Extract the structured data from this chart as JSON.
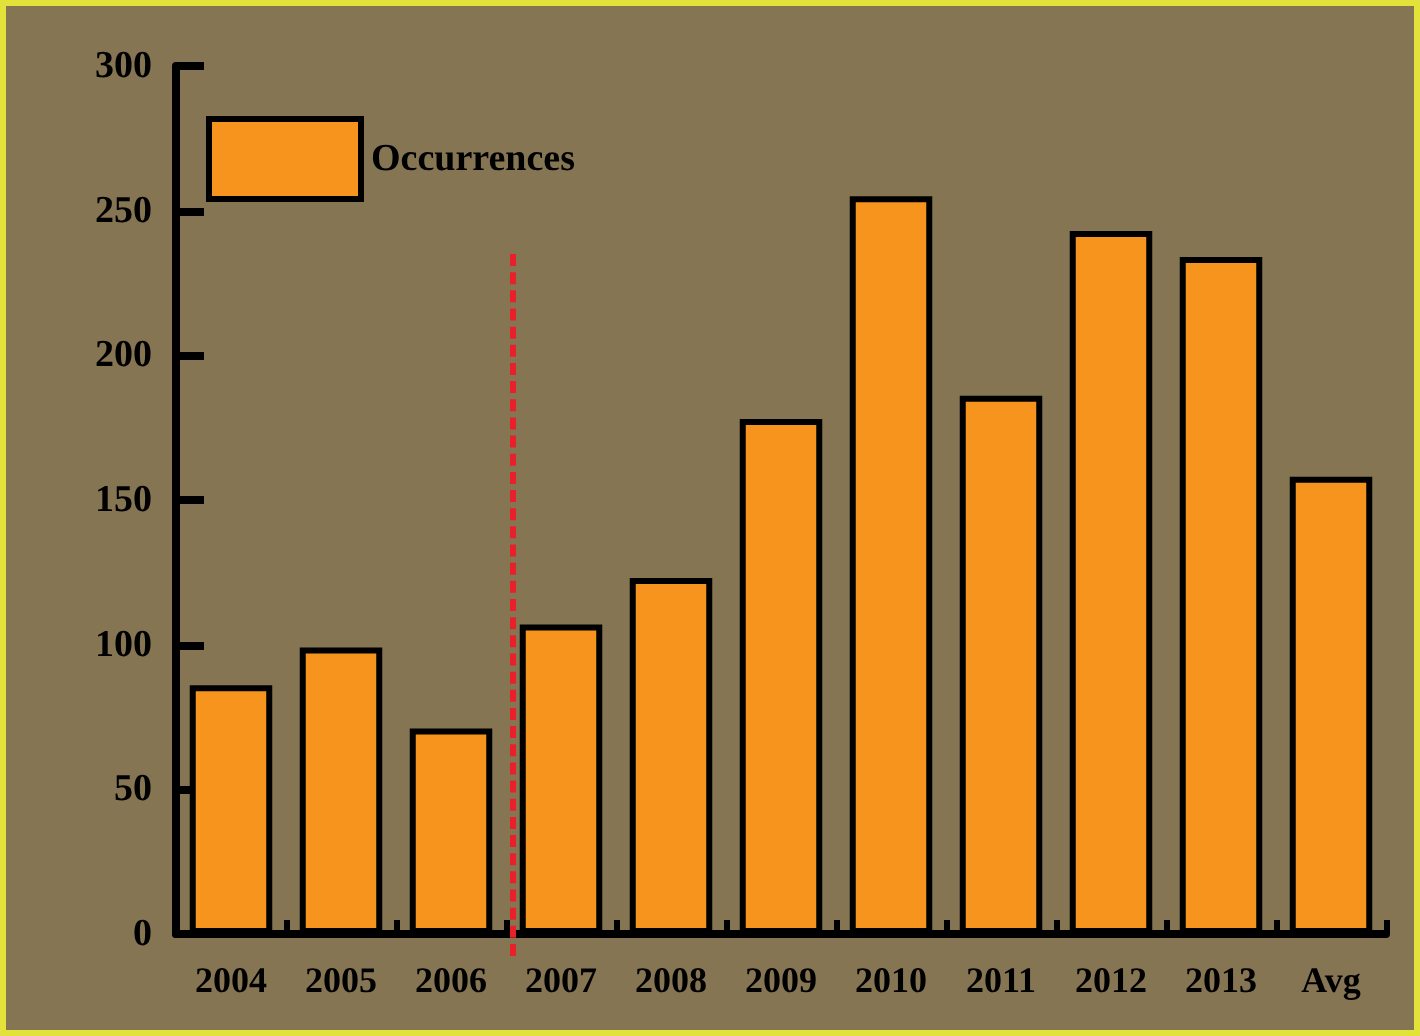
{
  "chart_data": {
    "type": "bar",
    "categories": [
      "2004",
      "2005",
      "2006",
      "2007",
      "2008",
      "2009",
      "2010",
      "2011",
      "2012",
      "2013",
      "Avg"
    ],
    "series": [
      {
        "name": "Occurrences",
        "color": "#f7941d",
        "values": [
          86,
          99,
          71,
          107,
          123,
          178,
          255,
          186,
          243,
          234,
          158
        ]
      }
    ],
    "ylim": [
      0,
      300
    ],
    "yticks": [
      0,
      50,
      100,
      150,
      200,
      250,
      300
    ],
    "grid": false,
    "legend": "top left",
    "ref_lines": [
      {
        "axis": "x",
        "value": "2007",
        "color": "#e8202a",
        "line_style": "dashed"
      }
    ]
  }
}
